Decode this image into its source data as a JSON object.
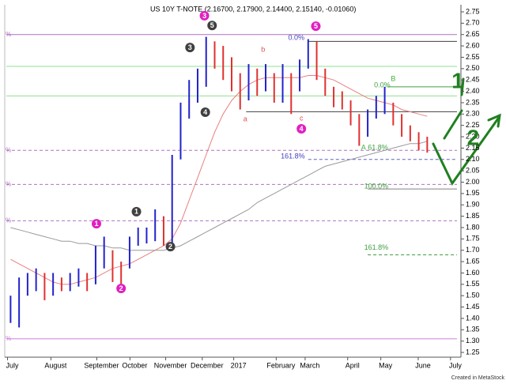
{
  "chart_data": {
    "type": "bar-range",
    "title": "US 10Y T-NOTE (2.16700, 2.17900, 2.14400, 2.15140, -0.01060)",
    "footer": "Created in MetaStock",
    "xlim": [
      -0.5,
      52.5
    ],
    "ylim": [
      1.25,
      2.75
    ],
    "xticks": [
      {
        "value": 0.2,
        "label": "July"
      },
      {
        "value": 5.3,
        "label": "August"
      },
      {
        "value": 10.7,
        "label": "September"
      },
      {
        "value": 14.6,
        "label": "October"
      },
      {
        "value": 18.8,
        "label": "November"
      },
      {
        "value": 23.1,
        "label": "December"
      },
      {
        "value": 26.8,
        "label": "2017"
      },
      {
        "value": 31.8,
        "label": "February"
      },
      {
        "value": 35.2,
        "label": "March"
      },
      {
        "value": 40.2,
        "label": "April"
      },
      {
        "value": 44.1,
        "label": "May"
      },
      {
        "value": 48.5,
        "label": "June"
      },
      {
        "value": 52.3,
        "label": "July"
      }
    ],
    "yticks": [
      {
        "value": 1.25,
        "label": "1.25"
      },
      {
        "value": 1.3,
        "label": "1.30"
      },
      {
        "value": 1.35,
        "label": "1.35"
      },
      {
        "value": 1.4,
        "label": "1.40"
      },
      {
        "value": 1.45,
        "label": "1.45"
      },
      {
        "value": 1.5,
        "label": "1.50"
      },
      {
        "value": 1.55,
        "label": "1.55"
      },
      {
        "value": 1.6,
        "label": "1.60"
      },
      {
        "value": 1.65,
        "label": "1.65"
      },
      {
        "value": 1.7,
        "label": "1.70"
      },
      {
        "value": 1.75,
        "label": "1.75"
      },
      {
        "value": 1.8,
        "label": "1.80"
      },
      {
        "value": 1.85,
        "label": "1.85"
      },
      {
        "value": 1.9,
        "label": "1.90"
      },
      {
        "value": 1.95,
        "label": "1.95"
      },
      {
        "value": 2.0,
        "label": "2.00"
      },
      {
        "value": 2.05,
        "label": "2.05"
      },
      {
        "value": 2.1,
        "label": "2.10"
      },
      {
        "value": 2.15,
        "label": "2.15"
      },
      {
        "value": 2.2,
        "label": "2.20"
      },
      {
        "value": 2.25,
        "label": "2.25"
      },
      {
        "value": 2.3,
        "label": "2.30"
      },
      {
        "value": 2.35,
        "label": "2.35"
      },
      {
        "value": 2.4,
        "label": "2.40"
      },
      {
        "value": 2.45,
        "label": "2.45"
      },
      {
        "value": 2.5,
        "label": "2.50"
      },
      {
        "value": 2.55,
        "label": "2.55"
      },
      {
        "value": 2.6,
        "label": "2.60"
      },
      {
        "value": 2.65,
        "label": "2.65"
      },
      {
        "value": 2.7,
        "label": "2.70"
      },
      {
        "value": 2.75,
        "label": "2.75"
      }
    ],
    "up_color": "#2222cc",
    "down_color": "#e03030",
    "high": [
      1.5,
      1.58,
      1.6,
      1.62,
      1.6,
      1.6,
      1.58,
      1.6,
      1.62,
      1.6,
      1.72,
      1.76,
      1.7,
      1.65,
      1.76,
      1.8,
      1.8,
      1.88,
      1.85,
      2.12,
      2.35,
      2.45,
      2.5,
      2.64,
      2.62,
      2.6,
      2.55,
      2.48,
      2.52,
      2.5,
      2.52,
      2.48,
      2.52,
      2.48,
      2.54,
      2.63,
      2.62,
      2.5,
      2.42,
      2.4,
      2.36,
      2.3,
      2.32,
      2.38,
      2.42,
      2.35,
      2.3,
      2.25,
      2.22,
      2.2
    ],
    "low": [
      1.38,
      1.36,
      1.5,
      1.52,
      1.48,
      1.5,
      1.52,
      1.52,
      1.54,
      1.52,
      1.55,
      1.62,
      1.56,
      1.55,
      1.62,
      1.72,
      1.73,
      1.74,
      1.72,
      1.72,
      2.1,
      2.28,
      2.35,
      2.42,
      2.5,
      2.45,
      2.4,
      2.32,
      2.36,
      2.38,
      2.4,
      2.35,
      2.35,
      2.3,
      2.4,
      2.5,
      2.45,
      2.38,
      2.33,
      2.32,
      2.25,
      2.16,
      2.2,
      2.28,
      2.3,
      2.25,
      2.2,
      2.18,
      2.14,
      2.13
    ],
    "series": [
      {
        "color": "#e88080",
        "values": [
          1.66,
          1.64,
          1.62,
          1.6,
          1.58,
          1.56,
          1.55,
          1.55,
          1.56,
          1.57,
          1.58,
          1.6,
          1.62,
          1.63,
          1.64,
          1.66,
          1.68,
          1.7,
          1.72,
          1.75,
          1.82,
          1.92,
          2.02,
          2.12,
          2.22,
          2.3,
          2.36,
          2.4,
          2.43,
          2.45,
          2.46,
          2.46,
          2.46,
          2.46,
          2.46,
          2.47,
          2.47,
          2.46,
          2.45,
          2.43,
          2.41,
          2.39,
          2.37,
          2.36,
          2.35,
          2.34,
          2.32,
          2.31,
          2.3,
          2.29
        ]
      },
      {
        "color": "#999999",
        "values": [
          1.8,
          1.79,
          1.78,
          1.77,
          1.76,
          1.75,
          1.74,
          1.74,
          1.73,
          1.73,
          1.72,
          1.72,
          1.71,
          1.71,
          1.7,
          1.7,
          1.7,
          1.7,
          1.7,
          1.71,
          1.72,
          1.74,
          1.76,
          1.78,
          1.8,
          1.82,
          1.84,
          1.86,
          1.88,
          1.91,
          1.93,
          1.95,
          1.97,
          1.99,
          2.01,
          2.03,
          2.05,
          2.07,
          2.08,
          2.09,
          2.1,
          2.11,
          2.12,
          2.13,
          2.14,
          2.15,
          2.16,
          2.17,
          2.17,
          2.18
        ]
      }
    ],
    "levels": [
      {
        "value": 2.65,
        "color": "#b070c0",
        "dashed": false,
        "from": -0.5,
        "label": "%"
      },
      {
        "value": 2.14,
        "color": "#b070c0",
        "dashed": true,
        "from": -0.5,
        "label": "%"
      },
      {
        "value": 1.99,
        "color": "#b070c0",
        "dashed": true,
        "from": -0.5,
        "label": "%"
      },
      {
        "value": 1.83,
        "color": "#b070c0",
        "dashed": true,
        "from": -0.5,
        "label": "%"
      },
      {
        "value": 1.31,
        "color": "#d080e0",
        "dashed": false,
        "from": -0.5,
        "label": "%"
      },
      {
        "value": 2.51,
        "color": "#90e090",
        "dashed": false,
        "from": -0.5
      },
      {
        "value": 2.38,
        "color": "#90e090",
        "dashed": false,
        "from": -0.5
      },
      {
        "value": 2.42,
        "color": "#40a040",
        "dashed": false,
        "from": 44.3
      },
      {
        "value": 2.62,
        "color": "#404040",
        "dashed": false,
        "from": 35.0
      },
      {
        "value": 2.31,
        "color": "#404040",
        "dashed": false,
        "from": 27.7
      },
      {
        "value": 2.1,
        "color": "#6060c0",
        "dashed": true,
        "from": 35.0
      },
      {
        "value": 1.97,
        "color": "#808080",
        "dashed": false,
        "from": 42.0
      },
      {
        "value": 1.68,
        "color": "#40a040",
        "dashed": true,
        "from": 42.0
      }
    ],
    "annotations": [
      {
        "text": "1",
        "x": 10.1,
        "y": 1.817,
        "style": "circle",
        "color": "#e020c0"
      },
      {
        "text": "2",
        "x": 13.0,
        "y": 1.532,
        "style": "circle",
        "color": "#e020c0"
      },
      {
        "text": "1",
        "x": 14.8,
        "y": 1.87,
        "style": "circle",
        "color": "#404040"
      },
      {
        "text": "2",
        "x": 18.8,
        "y": 1.716,
        "style": "circle",
        "color": "#404040"
      },
      {
        "text": "3",
        "x": 22.8,
        "y": 2.733,
        "style": "circle",
        "color": "#e020c0"
      },
      {
        "text": "3",
        "x": 21.1,
        "y": 2.593,
        "style": "circle",
        "color": "#404040"
      },
      {
        "text": "5",
        "x": 23.7,
        "y": 2.69,
        "style": "circle",
        "color": "#404040"
      },
      {
        "text": "4",
        "x": 22.9,
        "y": 2.308,
        "style": "circle",
        "color": "#404040"
      },
      {
        "text": "4",
        "x": 34.2,
        "y": 2.235,
        "style": "circle",
        "color": "#e020c0"
      },
      {
        "text": "5",
        "x": 35.9,
        "y": 2.687,
        "style": "circle",
        "color": "#e020c0"
      },
      {
        "text": "a",
        "x": 27.6,
        "y": 2.277,
        "style": "plain",
        "color": "#e05050"
      },
      {
        "text": "b",
        "x": 29.7,
        "y": 2.583,
        "style": "plain",
        "color": "#e05050"
      },
      {
        "text": "c",
        "x": 34.2,
        "y": 2.28,
        "style": "plain",
        "color": "#e05050"
      },
      {
        "text": "A",
        "x": 41.5,
        "y": 2.151,
        "style": "plain",
        "color": "#40b040"
      },
      {
        "text": "B",
        "x": 45.0,
        "y": 2.454,
        "style": "plain",
        "color": "#40b040"
      },
      {
        "text": "0.0%",
        "x": 33.6,
        "y": 2.635,
        "style": "plain",
        "color": "#4040c0"
      },
      {
        "text": "161.8%",
        "x": 33.2,
        "y": 2.113,
        "style": "plain",
        "color": "#4040c0"
      },
      {
        "text": "61.8%",
        "x": 43.2,
        "y": 2.151,
        "style": "plain",
        "color": "#40a040"
      },
      {
        "text": "0.0%",
        "x": 43.7,
        "y": 2.426,
        "style": "plain",
        "color": "#40a040"
      },
      {
        "text": "100.0%",
        "x": 43.0,
        "y": 1.98,
        "style": "plain",
        "color": "#40a040"
      },
      {
        "text": "161.8%",
        "x": 43.0,
        "y": 1.71,
        "style": "plain",
        "color": "#40a040"
      },
      {
        "text": "1",
        "x": 52.6,
        "y": 2.44,
        "style": "hand",
        "color": "#208020"
      },
      {
        "text": "2",
        "x": 54.4,
        "y": 2.19,
        "style": "hand",
        "color": "#208020"
      }
    ]
  }
}
